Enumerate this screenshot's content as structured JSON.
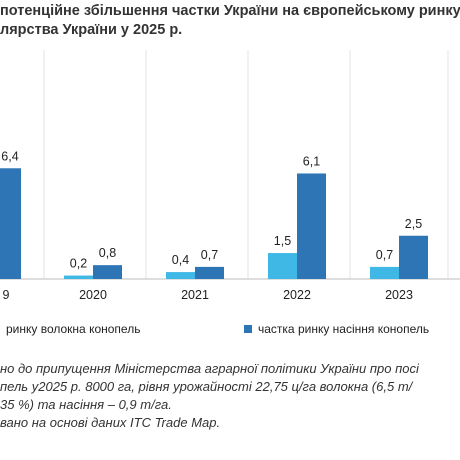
{
  "title_lines": [
    "потенційне збільшення частки України на європейському ринку",
    "лярства України у 2025 р."
  ],
  "chart_data": {
    "type": "bar",
    "categories": [
      "9",
      "2020",
      "2021",
      "2022",
      "2023"
    ],
    "series": [
      {
        "name": "ринку волокна конопель",
        "color": "#3fb8e6",
        "values": [
          null,
          0.2,
          0.4,
          1.5,
          0.7
        ],
        "labels": [
          "",
          "0,2",
          "0,4",
          "1,5",
          "0,7"
        ]
      },
      {
        "name": "частка ринку насіння конопель",
        "color": "#2e75b6",
        "values": [
          6.4,
          0.8,
          0.7,
          6.1,
          2.5
        ],
        "labels": [
          "6,4",
          "0,8",
          "0,7",
          "6,1",
          "2,5"
        ]
      }
    ],
    "ylim": [
      0,
      12
    ],
    "grid": false,
    "legend_position": "bottom"
  },
  "notes": [
    "но до припущення Міністерства аграрної політики України про посі",
    "пель у2025 р. 8000 га, рівня урожайності 22,75 ц/га волокна (6,5 т/",
    "35 %) та насіння – 0,9 т/га.",
    "вано на основі даних ITC Trade Map."
  ]
}
